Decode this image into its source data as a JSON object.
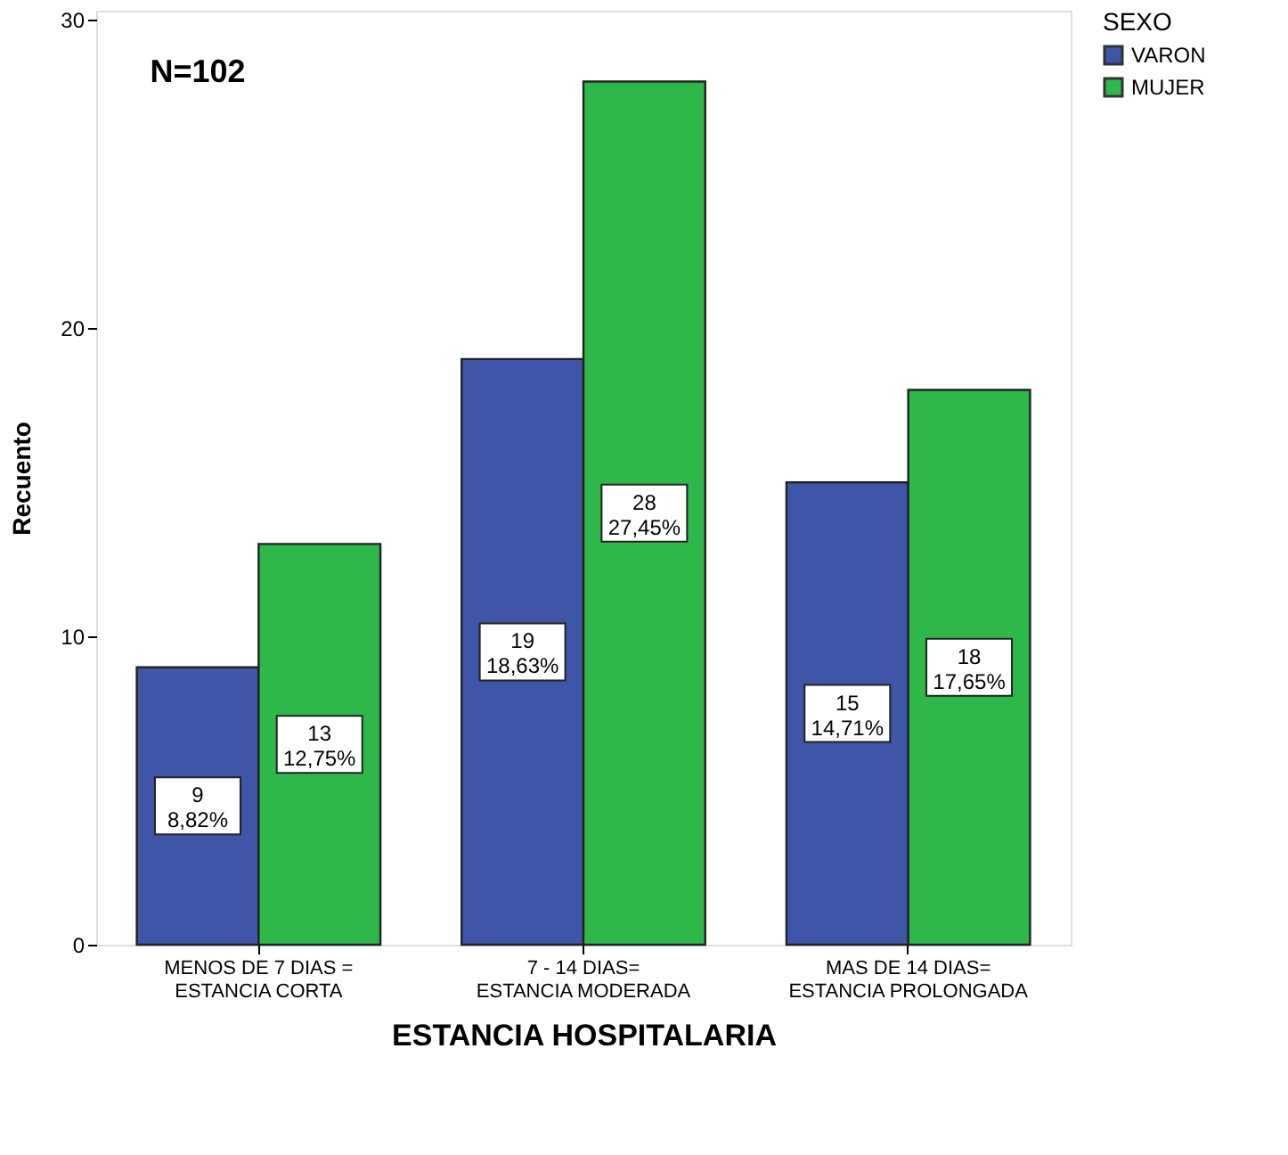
{
  "chart_data": {
    "type": "bar",
    "xlabel": "ESTANCIA HOSPITALARIA",
    "ylabel": "Recuento",
    "legend_title": "SEXO",
    "categories": [
      "MENOS DE 7 DIAS = ESTANCIA CORTA",
      "7 - 14 DIAS= ESTANCIA MODERADA",
      "MAS DE 14 DIAS= ESTANCIA PROLONGADA"
    ],
    "series": [
      {
        "name": "VARON",
        "color": "#3f55a8",
        "values": [
          9,
          19,
          15
        ],
        "value_labels": [
          "9\n8,82%",
          "19\n18,63%",
          "15\n14,71%"
        ]
      },
      {
        "name": "MUJER",
        "color": "#2eb84a",
        "values": [
          13,
          28,
          18
        ],
        "value_labels": [
          "13\n12,75%",
          "28\n27,45%",
          "18\n17,65%"
        ]
      }
    ],
    "annotations": [
      "N=102"
    ],
    "ylim": [
      0,
      30.3
    ],
    "yticks": [
      0,
      10,
      20,
      30
    ],
    "grid": false,
    "legend": "top right"
  }
}
